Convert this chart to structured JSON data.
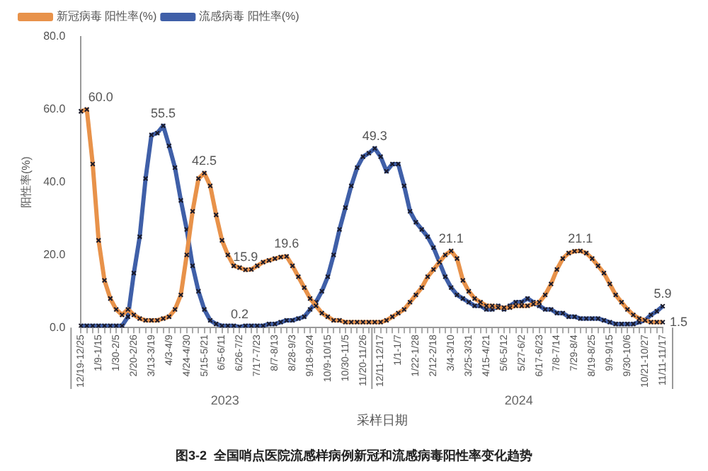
{
  "chart_data": {
    "type": "line",
    "xlabel": "采样日期",
    "ylabel": "阳性率(%)",
    "categories": [
      "12/19-12/25",
      null,
      null,
      "1/9-1/15",
      null,
      null,
      "1/30-2/5",
      null,
      null,
      "2/20-2/26",
      null,
      null,
      "3/13-3/19",
      null,
      null,
      "4/3-4/9",
      null,
      null,
      "4/24-4/30",
      null,
      null,
      "5/15-5/21",
      null,
      null,
      "6/5-6/11",
      null,
      null,
      "6/26-7/2",
      null,
      null,
      "7/17-7/23",
      null,
      null,
      "8/7-8/13",
      null,
      null,
      "8/28-9/3",
      null,
      null,
      "9/18-9/24",
      null,
      null,
      "10/9-10/15",
      null,
      null,
      "10/30-11/5",
      null,
      null,
      "11/20-11/26",
      null,
      null,
      "12/11-12/17",
      null,
      null,
      "1/1-1/7",
      null,
      null,
      "1/22-1/28",
      null,
      null,
      "2/12-2/18",
      null,
      null,
      "3/4-3/10",
      null,
      null,
      "3/25-3/31",
      null,
      null,
      "4/15-4/21",
      null,
      null,
      "5/6-5/12",
      null,
      null,
      "5/27-6/2",
      null,
      null,
      "6/17-6/23",
      null,
      null,
      "7/8-7/14",
      null,
      null,
      "7/29-8/4",
      null,
      null,
      "8/19-8/25",
      null,
      null,
      "9/9-9/15",
      null,
      null,
      "9/30-10/6",
      null,
      null,
      "10/21-10/27",
      null,
      null,
      "11/11-11/17"
    ],
    "series": [
      {
        "name": "新冠病毒 阳性率(%)",
        "color": "#e8924a",
        "values": [
          59.5,
          60.0,
          45,
          24,
          13,
          8,
          5,
          3.5,
          5,
          3.5,
          2.5,
          2,
          2,
          2,
          2.5,
          3,
          5,
          9,
          20,
          32,
          41,
          42.5,
          39,
          31,
          24,
          20,
          17,
          16.5,
          15.9,
          16,
          17,
          18,
          18.5,
          19,
          19.4,
          19.6,
          17,
          14,
          11,
          8,
          6,
          4,
          3,
          2,
          2,
          1.5,
          1.5,
          1.5,
          1.5,
          1.5,
          1.5,
          1.5,
          2,
          3,
          4,
          5,
          7,
          9,
          11,
          14,
          16,
          18,
          20,
          21.1,
          19,
          13,
          10,
          8,
          7,
          6,
          6,
          5.5,
          5.5,
          5.5,
          6,
          6,
          6,
          6.5,
          7,
          9,
          12,
          16,
          19,
          20.5,
          21,
          21.1,
          20.5,
          19,
          17,
          15,
          12,
          9,
          7,
          5,
          3.5,
          2.5,
          2,
          1.5,
          1.5,
          1.5
        ],
        "value_labels": [
          null,
          "60.0",
          null,
          null,
          null,
          null,
          null,
          null,
          null,
          null,
          null,
          null,
          null,
          null,
          null,
          null,
          null,
          null,
          null,
          null,
          null,
          "42.5",
          null,
          null,
          null,
          null,
          null,
          null,
          "15.9",
          null,
          null,
          null,
          null,
          null,
          null,
          "19.6",
          null,
          null,
          null,
          null,
          null,
          null,
          null,
          null,
          null,
          null,
          null,
          null,
          null,
          null,
          null,
          null,
          null,
          null,
          null,
          null,
          null,
          null,
          null,
          null,
          null,
          null,
          null,
          "21.1",
          null,
          null,
          null,
          null,
          null,
          null,
          null,
          null,
          null,
          null,
          null,
          null,
          null,
          null,
          null,
          null,
          null,
          null,
          null,
          null,
          null,
          "21.1",
          null,
          null,
          null,
          null,
          null,
          null,
          null,
          null,
          null,
          null,
          null,
          null,
          null,
          "1.5"
        ]
      },
      {
        "name": "流感病毒 阳性率(%)",
        "color": "#3f5fa8",
        "values": [
          0.5,
          0.5,
          0.5,
          0.5,
          0.5,
          0.5,
          0.5,
          0.5,
          3,
          15,
          25,
          41,
          53,
          53.5,
          55.5,
          50,
          44,
          35,
          27,
          17,
          10,
          5,
          2,
          1,
          0.5,
          0.5,
          0.5,
          0.2,
          0.5,
          0.5,
          0.5,
          0.5,
          1,
          1,
          1.5,
          2,
          2,
          2.5,
          3,
          5,
          7,
          10,
          14,
          20,
          27,
          33,
          39,
          44,
          47,
          48,
          49.3,
          47,
          43,
          45,
          45,
          39,
          32,
          29,
          27,
          25,
          22,
          18,
          14,
          11,
          9,
          8,
          7,
          6,
          6,
          5,
          5,
          6,
          5,
          6,
          7,
          7,
          8,
          7,
          6,
          5,
          5,
          4,
          4,
          3,
          3,
          2.5,
          2.5,
          2.5,
          2.5,
          2,
          1.5,
          1,
          1,
          1,
          1,
          1.5,
          2,
          3.5,
          4.5,
          5.9
        ],
        "value_labels": [
          null,
          null,
          null,
          null,
          null,
          null,
          null,
          null,
          null,
          null,
          null,
          null,
          null,
          null,
          "55.5",
          null,
          null,
          null,
          null,
          null,
          null,
          null,
          null,
          null,
          null,
          null,
          null,
          "0.2",
          null,
          null,
          null,
          null,
          null,
          null,
          null,
          null,
          null,
          null,
          null,
          null,
          null,
          null,
          null,
          null,
          null,
          null,
          null,
          null,
          null,
          null,
          "49.3",
          null,
          null,
          null,
          null,
          null,
          null,
          null,
          null,
          null,
          null,
          null,
          null,
          null,
          null,
          null,
          null,
          null,
          null,
          null,
          null,
          null,
          null,
          null,
          null,
          null,
          null,
          null,
          null,
          null,
          null,
          null,
          null,
          null,
          null,
          null,
          null,
          null,
          null,
          null,
          null,
          null,
          null,
          null,
          null,
          null,
          null,
          null,
          null,
          "5.9"
        ]
      }
    ],
    "ylim": [
      0,
      80
    ],
    "yticks": [
      {
        "value": 0,
        "label": "0.0"
      },
      {
        "value": 20,
        "label": "20.0"
      },
      {
        "value": 40,
        "label": "40.0"
      },
      {
        "value": 60,
        "label": "60.0"
      },
      {
        "value": 80,
        "label": "80.0"
      }
    ],
    "grid": false,
    "legend": "top left",
    "marker": "cross",
    "line_style": "solid",
    "annotations": [
      "2023",
      "2024",
      "图3-2  全国哨点医院流感样病例新冠和流感病毒阳性率变化趋势"
    ]
  }
}
